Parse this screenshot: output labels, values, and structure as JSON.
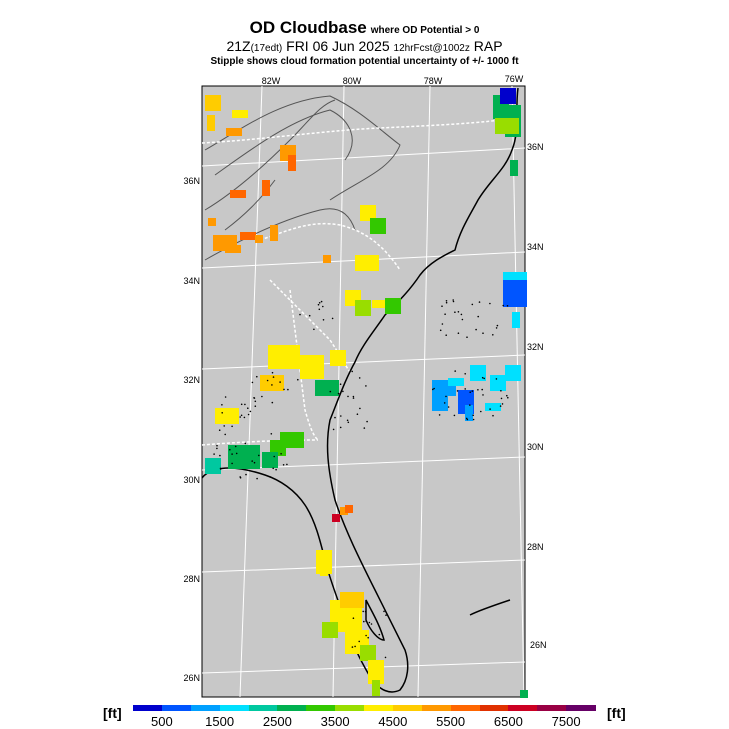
{
  "title": {
    "main": "OD Cloudbase",
    "condition": "where OD Potential > 0",
    "valid_time": "21Z",
    "local_time": "(17edt)",
    "date": "FRI 06 Jun 2025",
    "forecast": "12hrFcst@1002z",
    "model": "RAP",
    "note": "Stipple shows cloud formation potential uncertainty of +/-  1000 ft"
  },
  "map": {
    "background": "#c8c8c8",
    "lon_labels": [
      "82W",
      "80W",
      "78W",
      "76W"
    ],
    "lat_labels_left": [
      "36N",
      "34N",
      "32N",
      "30N",
      "28N",
      "26N"
    ],
    "lat_labels_right": [
      "36N",
      "34N",
      "32N",
      "30N",
      "28N",
      "26N"
    ]
  },
  "colorbar": {
    "unit_left": "[ft]",
    "unit_right": "[ft]",
    "tick_labels": [
      "500",
      "1500",
      "2500",
      "3500",
      "4500",
      "5500",
      "6500",
      "7500"
    ],
    "colors": [
      "#0000cc",
      "#0055ff",
      "#00a0ff",
      "#00e0ff",
      "#00c8a0",
      "#00b050",
      "#33c800",
      "#99dd00",
      "#ffee00",
      "#ffcc00",
      "#ff9900",
      "#ff6600",
      "#e03000",
      "#cc0022",
      "#990044",
      "#660066"
    ]
  },
  "cloud_cells": [
    {
      "region": "Florida peninsula",
      "band": "4500-5500",
      "color": "#ffee00"
    },
    {
      "region": "Georgia coast",
      "band": "3000-3500",
      "color": "#33c800"
    },
    {
      "region": "Florida panhandle",
      "band": "2500-3500",
      "color": "#00b050"
    },
    {
      "region": "Atlantic offshore",
      "band": "1000-2000",
      "color": "#00a0ff"
    },
    {
      "region": "Appalachians",
      "band": "5500-7000",
      "color": "#ff6600"
    }
  ]
}
